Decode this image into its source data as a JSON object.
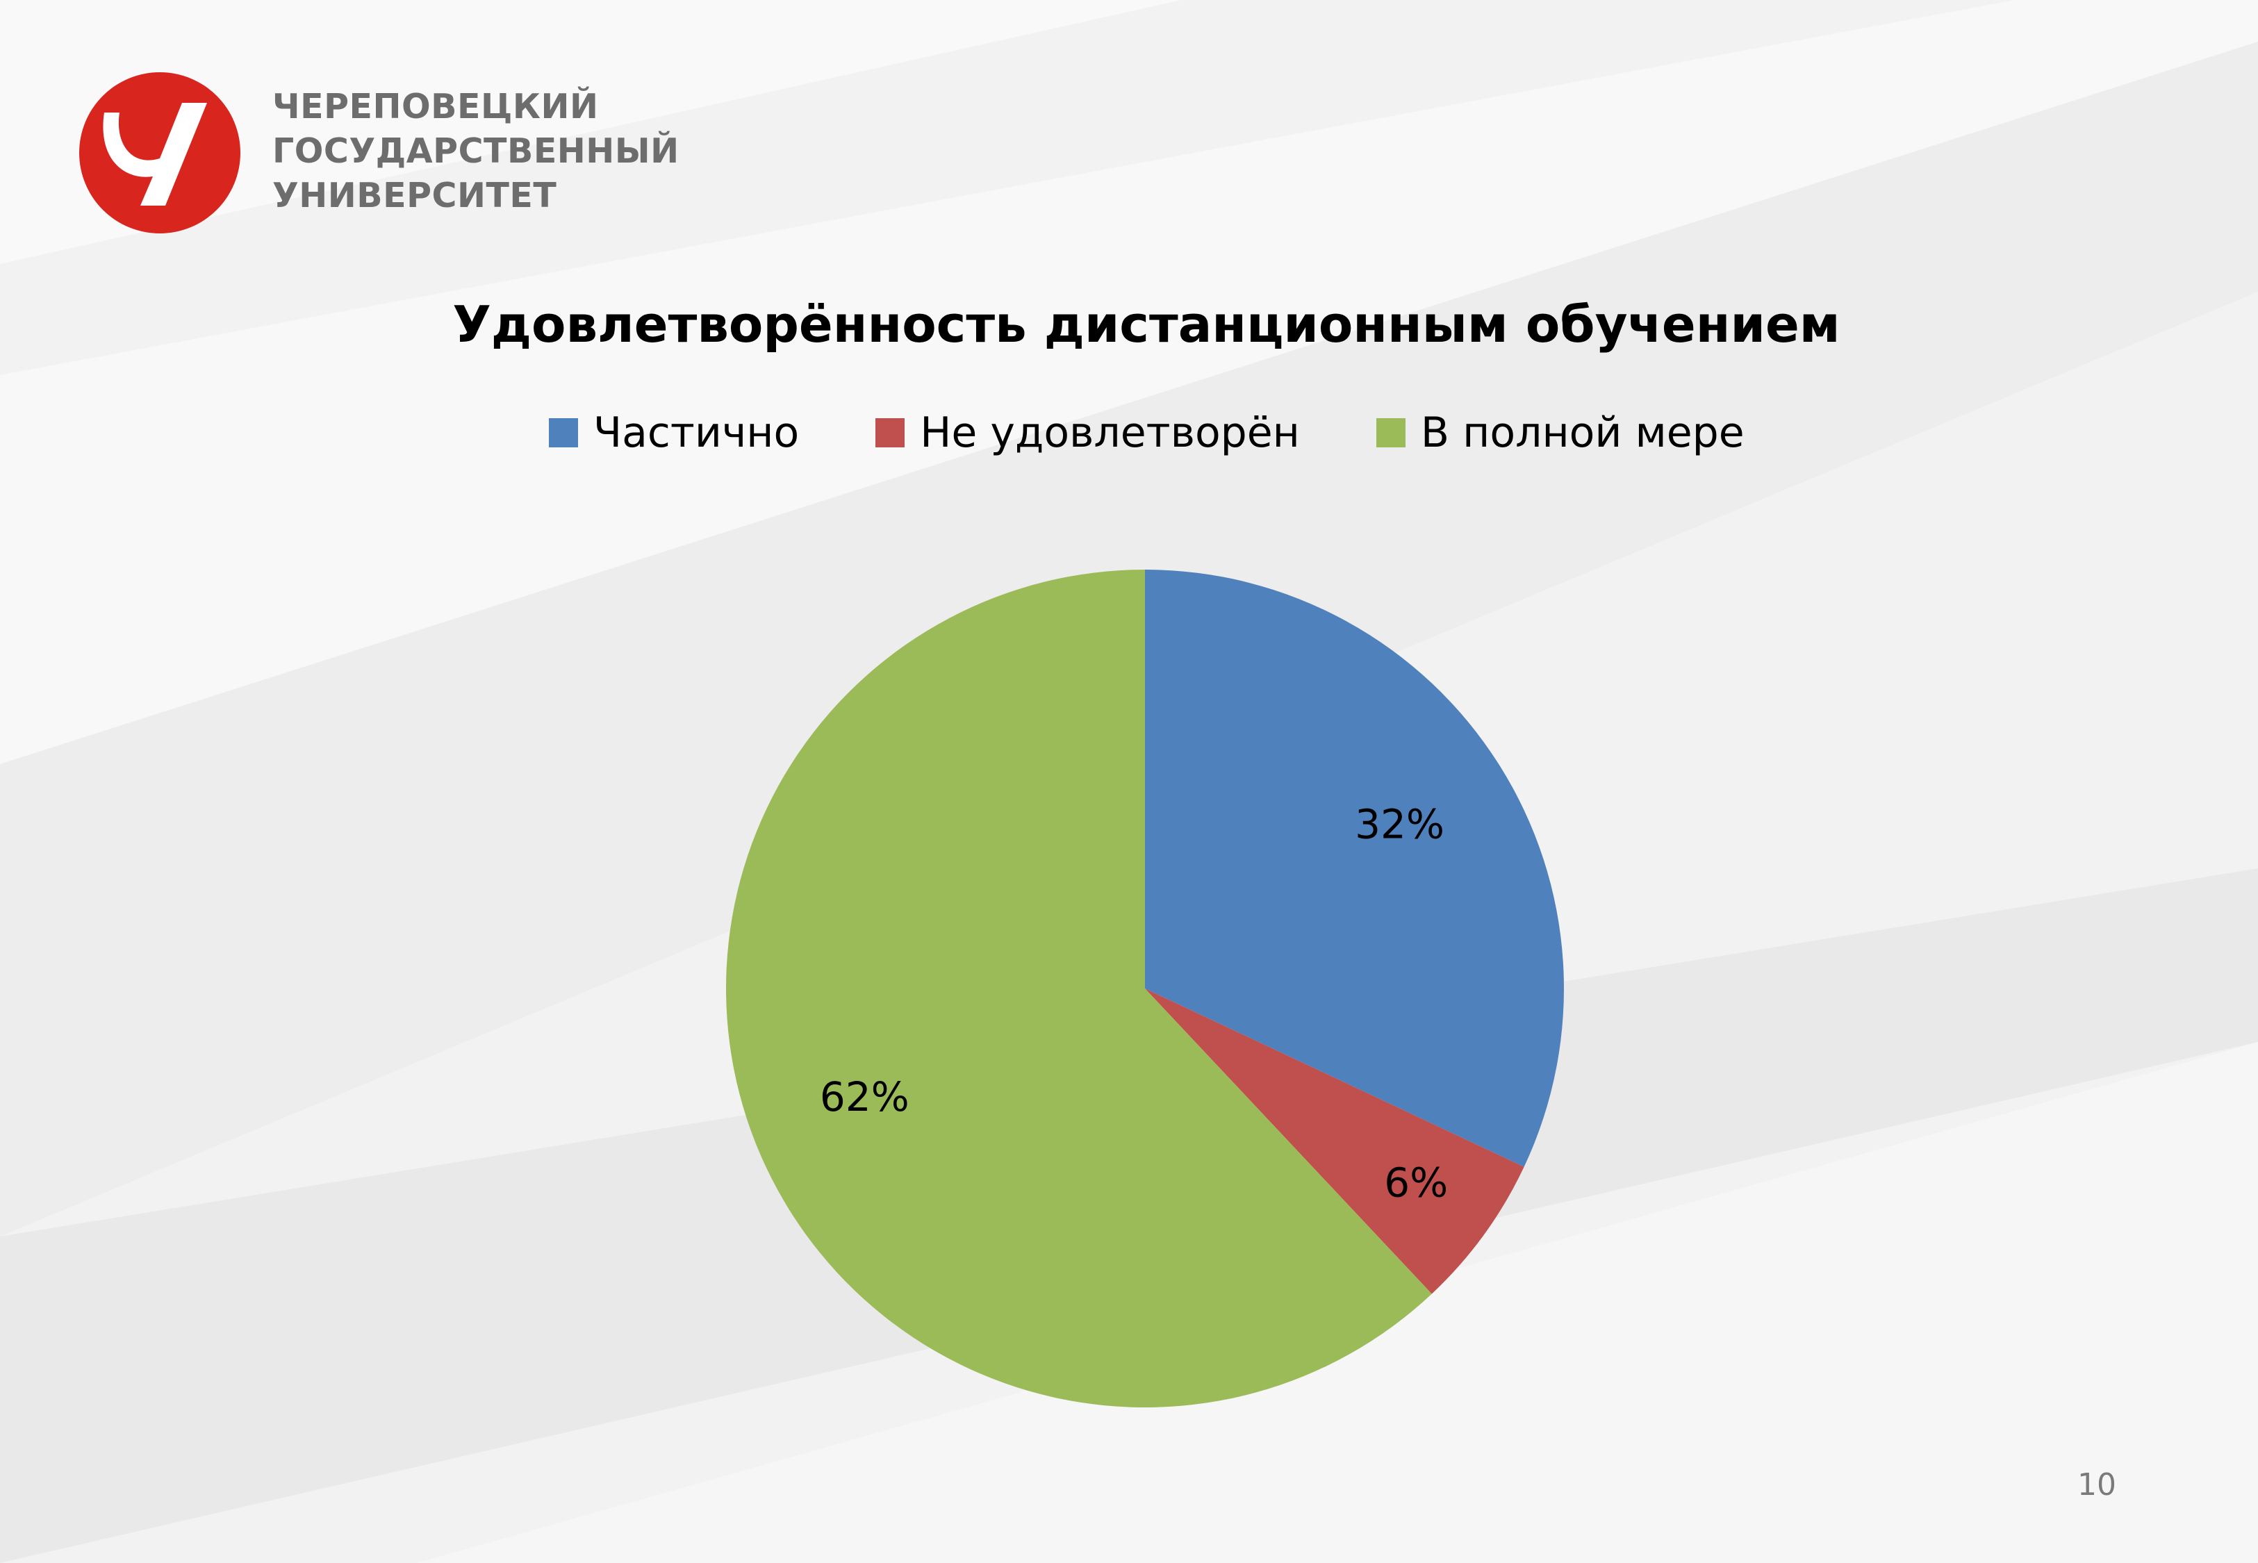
{
  "header": {
    "logo_icon": "cherepovets-university-logo-icon",
    "logo_lines": [
      "ЧЕРЕПОВЕЦКИЙ",
      "ГОСУДАРСТВЕННЫЙ",
      "УНИВЕРСИТЕТ"
    ],
    "logo_color": "#d8261f"
  },
  "chart_data": {
    "type": "pie",
    "title": "Удовлетворённость дистанционным обучением",
    "legend_position": "top",
    "categories": [
      "Частично",
      "Не удовлетворён",
      "В полной мере"
    ],
    "values": [
      32,
      6,
      62
    ],
    "labels": [
      "32%",
      "6%",
      "62%"
    ],
    "colors": [
      "#4f81bd",
      "#c0504d",
      "#9bbb59"
    ]
  },
  "footer": {
    "page_number": "10"
  }
}
